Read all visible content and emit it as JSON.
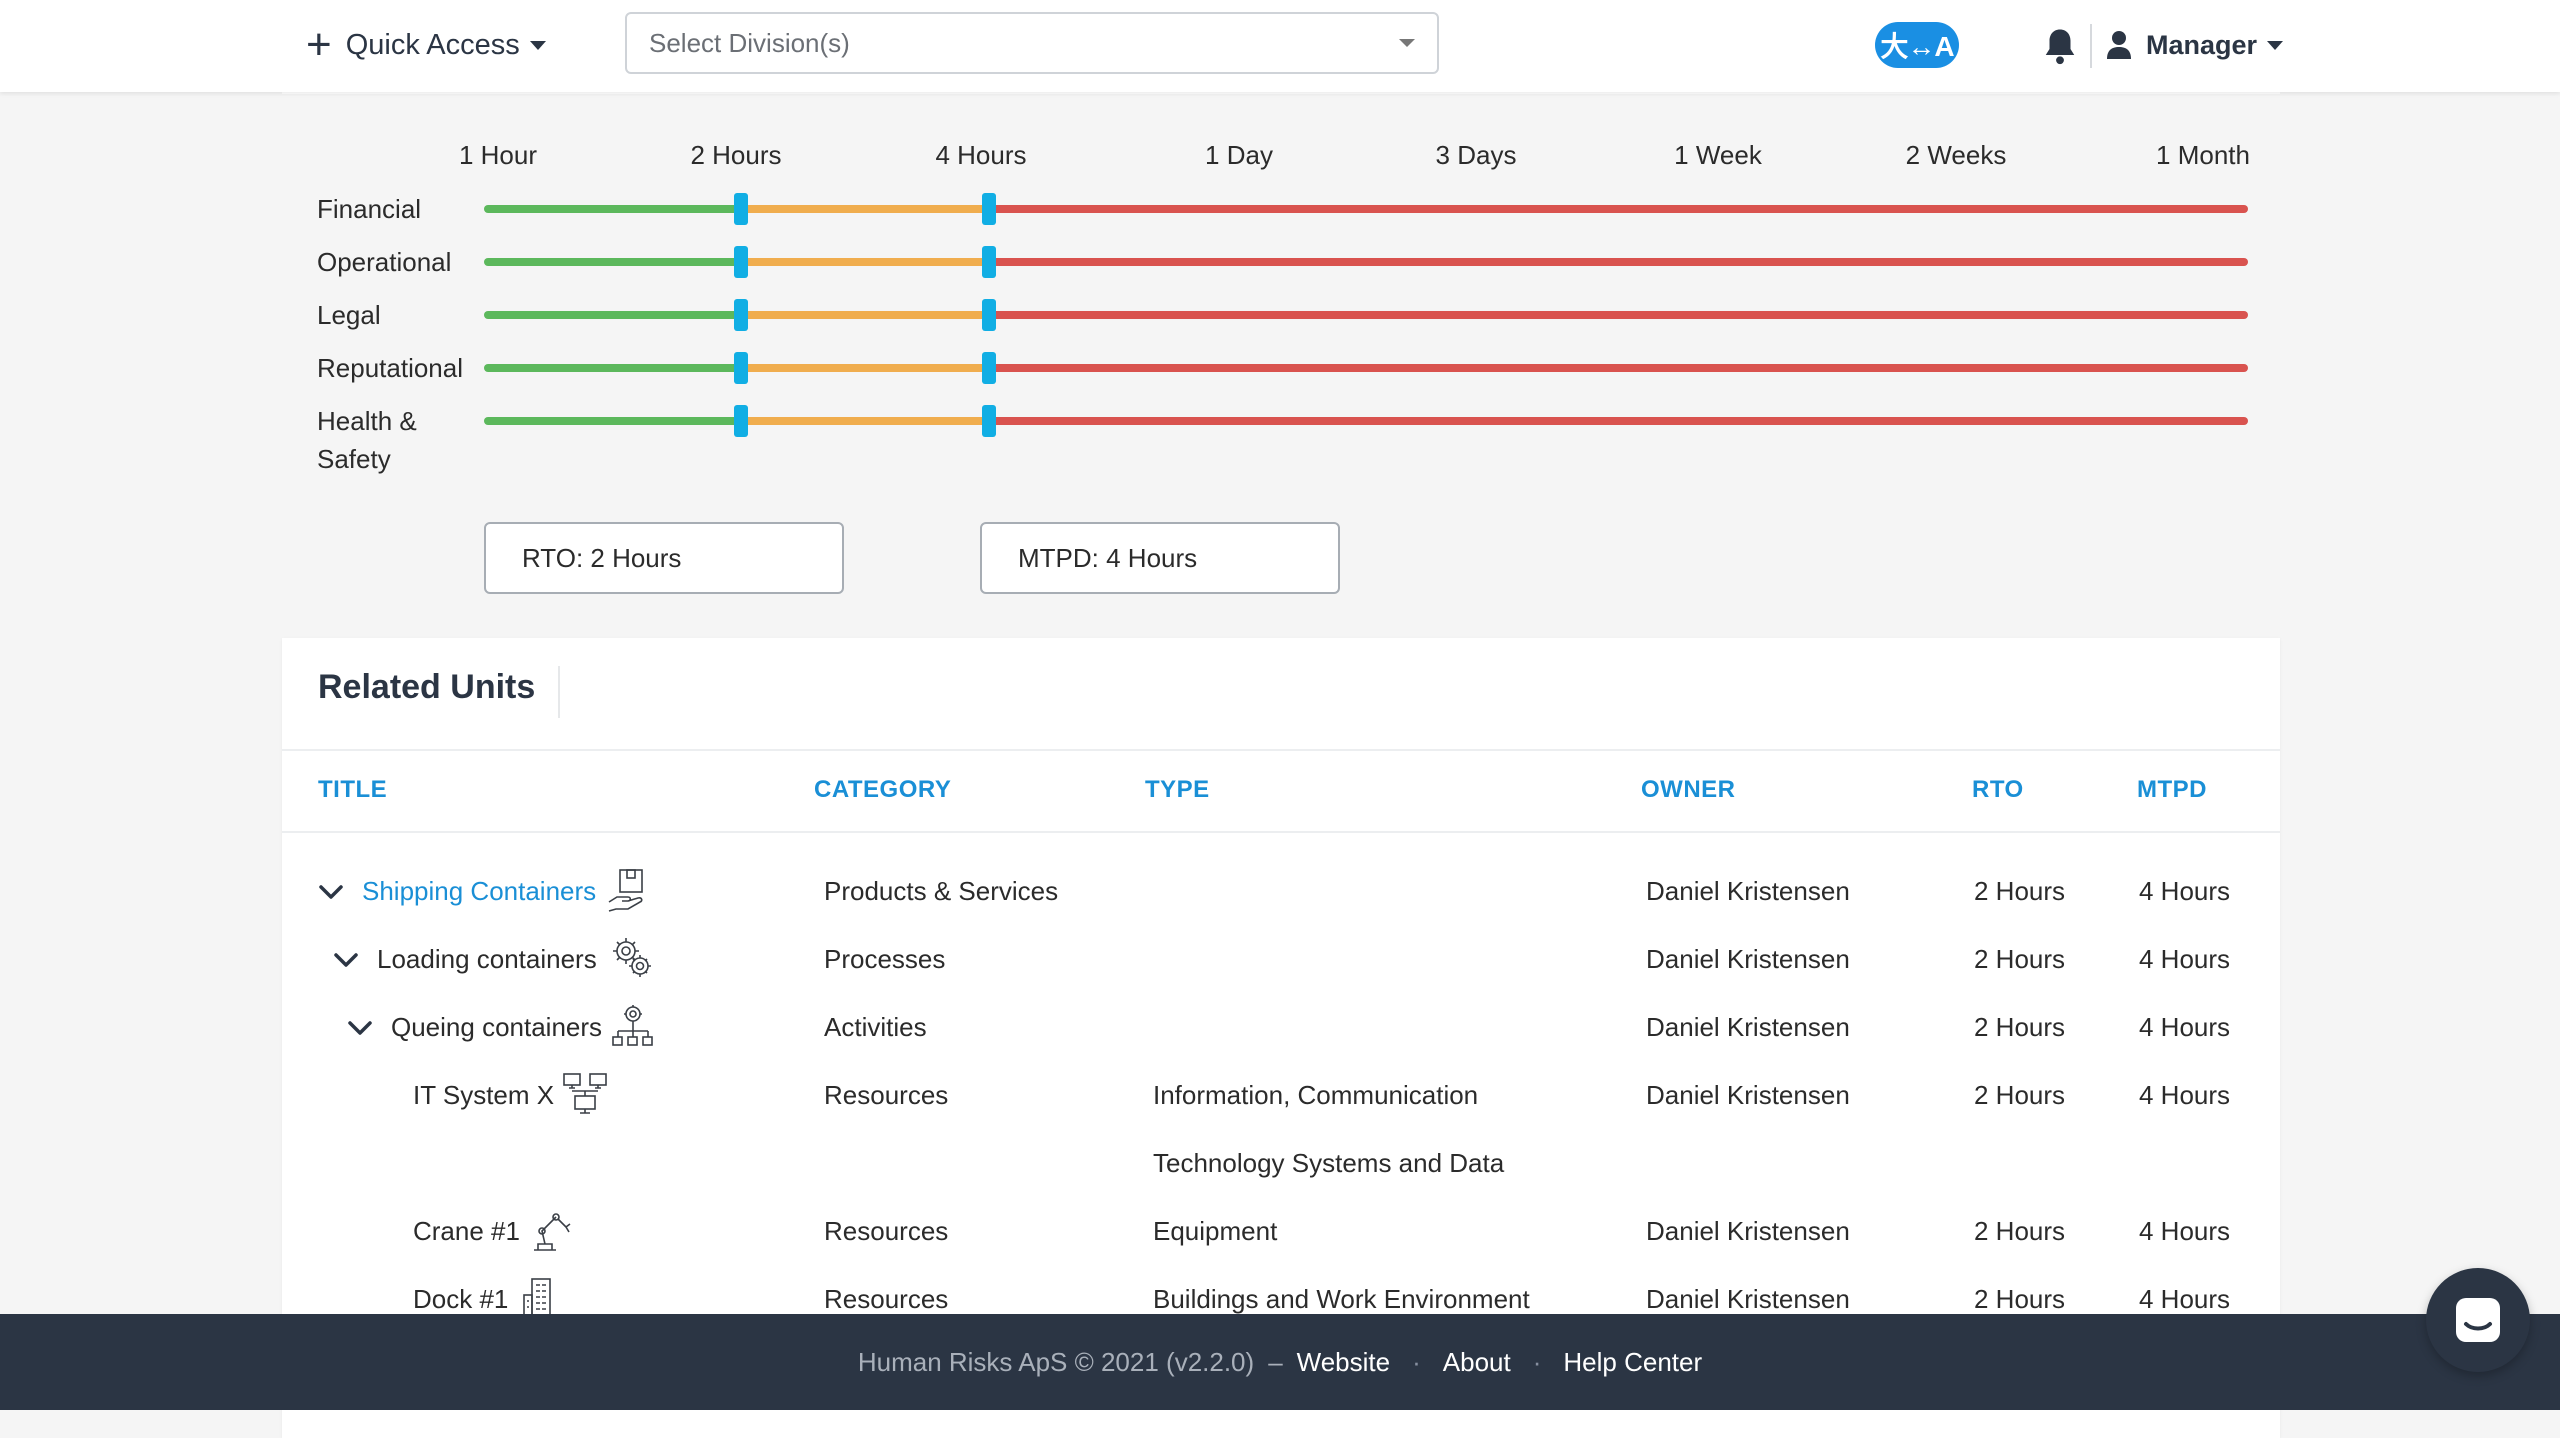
{
  "header": {
    "quick_access_label": "Quick Access",
    "division_placeholder": "Select Division(s)",
    "translate_label": "大↔A",
    "user_label": "Manager"
  },
  "impact_scale": {
    "labels": [
      "1 Hour",
      "2 Hours",
      "4 Hours",
      "1 Day",
      "3 Days",
      "1 Week",
      "2 Weeks",
      "1 Month"
    ],
    "categories": [
      "Financial",
      "Operational",
      "Legal",
      "Reputational",
      "Health & Safety"
    ],
    "rto_value": "RTO: 2 Hours",
    "mtpd_value": "MTPD: 4 Hours",
    "colors": {
      "acceptable": "#5cb85c",
      "tolerable": "#f0ad4e",
      "unacceptable": "#d9534f",
      "handle": "#11aee4"
    }
  },
  "related_units": {
    "title": "Related Units",
    "columns": {
      "title": "TITLE",
      "category": "CATEGORY",
      "type": "TYPE",
      "owner": "OWNER",
      "rto": "RTO",
      "mtpd": "MTPD"
    },
    "rows": [
      {
        "title": "Shipping Containers",
        "icon": "product-hand-icon",
        "category": "Products & Services",
        "type": "",
        "owner": "Daniel Kristensen",
        "rto": "2 Hours",
        "mtpd": "4 Hours"
      },
      {
        "title": "Loading containers",
        "icon": "gears-icon",
        "category": "Processes",
        "type": "",
        "owner": "Daniel Kristensen",
        "rto": "2 Hours",
        "mtpd": "4 Hours"
      },
      {
        "title": "Queing containers",
        "icon": "gear-hierarchy-icon",
        "category": "Activities",
        "type": "",
        "owner": "Daniel Kristensen",
        "rto": "2 Hours",
        "mtpd": "4 Hours"
      },
      {
        "title": "IT System X",
        "icon": "network-computers-icon",
        "category": "Resources",
        "type": "Information, Communication",
        "type2": "Technology Systems and Data",
        "owner": "Daniel Kristensen",
        "rto": "2 Hours",
        "mtpd": "4 Hours"
      },
      {
        "title": "Crane #1",
        "icon": "robot-arm-icon",
        "category": "Resources",
        "type": "Equipment",
        "owner": "Daniel Kristensen",
        "rto": "2 Hours",
        "mtpd": "4 Hours"
      },
      {
        "title": "Dock #1",
        "icon": "building-icon",
        "category": "Resources",
        "type": "Buildings and Work Environment",
        "owner": "Daniel Kristensen",
        "rto": "2 Hours",
        "mtpd": "4 Hours"
      }
    ]
  },
  "footer": {
    "copyright": "Human Risks ApS © 2021 (v2.2.0)",
    "dash": "–",
    "website": "Website",
    "about": "About",
    "help": "Help Center",
    "dot": "·"
  }
}
